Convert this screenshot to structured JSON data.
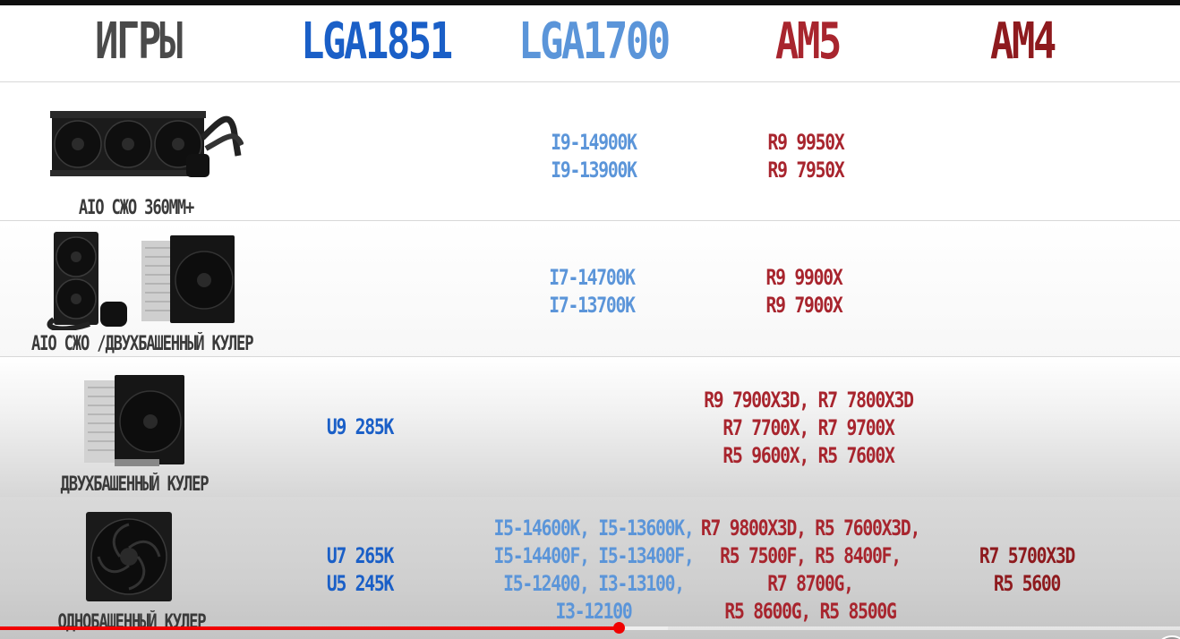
{
  "header": {
    "col_games": "ИГРЫ",
    "col_lga1851": "LGA1851",
    "col_lga1700": "LGA1700",
    "col_am5": "AM5",
    "col_am4": "AM4"
  },
  "colors": {
    "games": "#4a4a4a",
    "lga1851": "#1a5fc7",
    "lga1700": "#5b95d9",
    "am5": "#a8252e",
    "am4": "#8e1a1e",
    "progress": "#f00000"
  },
  "rows": [
    {
      "cooler_label": "AIO СЖО 360MM+",
      "cooler_icon": "aio-360-radiator-icon",
      "lga1851": [],
      "lga1700": [
        "I9-14900K",
        "I9-13900K"
      ],
      "am5": [
        "R9 9950X",
        "R9 7950X"
      ],
      "am4": []
    },
    {
      "cooler_label": "AIO СЖО /ДВУХБАШЕННЫЙ КУЛЕР",
      "cooler_icon": "aio-240-and-dual-tower-icon",
      "lga1851": [],
      "lga1700": [
        "I7-14700K",
        "I7-13700K"
      ],
      "am5": [
        "R9 9900X",
        "R9 7900X"
      ],
      "am4": []
    },
    {
      "cooler_label": "ДВУХБАШЕННЫЙ КУЛЕР",
      "cooler_icon": "dual-tower-cooler-icon",
      "lga1851": [
        "U9 285K"
      ],
      "lga1700": [],
      "am5": [
        "R9 7900X3D, R7 7800X3D",
        "R7 7700X, R7 9700X",
        "R5 9600X, R5 7600X"
      ],
      "am4": []
    },
    {
      "cooler_label": "ОДНОБАШЕННЫЙ КУЛЕР",
      "cooler_icon": "single-tower-cooler-icon",
      "lga1851": [
        "U7 265K",
        "U5 245K"
      ],
      "lga1700": [
        "I5-14600K, I5-13600K,",
        "I5-14400F, I5-13400F,",
        "I5-12400, I3-13100,",
        "I3-12100"
      ],
      "am5": [
        "R7 9800X3D, R5 7600X3D,",
        "R5 7500F, R5 8400F,",
        "R7 8700G,",
        "R5 8600G, R5 8500G"
      ],
      "am4": [
        "R7 5700X3D",
        "R5 5600"
      ]
    }
  ],
  "player": {
    "progress_fraction": 0.524
  }
}
